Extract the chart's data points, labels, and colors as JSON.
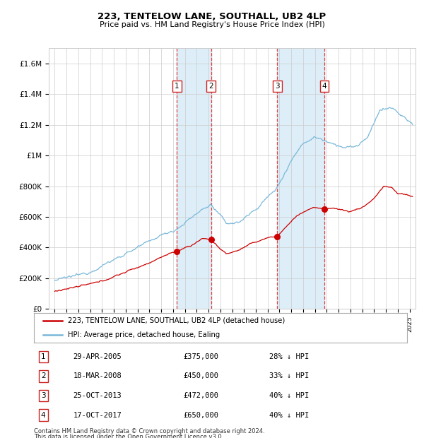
{
  "title": "223, TENTELOW LANE, SOUTHALL, UB2 4LP",
  "subtitle": "Price paid vs. HM Land Registry's House Price Index (HPI)",
  "footer1": "Contains HM Land Registry data © Crown copyright and database right 2024.",
  "footer2": "This data is licensed under the Open Government Licence v3.0.",
  "legend_red": "223, TENTELOW LANE, SOUTHALL, UB2 4LP (detached house)",
  "legend_blue": "HPI: Average price, detached house, Ealing",
  "sales": [
    {
      "num": 1,
      "date": "29-APR-2005",
      "price": 375000,
      "pct": "28%",
      "x_year": 2005.33
    },
    {
      "num": 2,
      "date": "18-MAR-2008",
      "price": 450000,
      "pct": "33%",
      "x_year": 2008.21
    },
    {
      "num": 3,
      "date": "25-OCT-2013",
      "price": 472000,
      "pct": "40%",
      "x_year": 2013.81
    },
    {
      "num": 4,
      "date": "17-OCT-2017",
      "price": 650000,
      "pct": "40%",
      "x_year": 2017.79
    }
  ],
  "red_color": "#cc0000",
  "blue_color": "#7ab8d9",
  "shade_color": "#ddeef8",
  "grid_color": "#cccccc",
  "ylim": [
    0,
    1700000
  ],
  "yticks": [
    0,
    200000,
    400000,
    600000,
    800000,
    1000000,
    1200000,
    1400000,
    1600000
  ],
  "ytick_labels": [
    "£0",
    "£200K",
    "£400K",
    "£600K",
    "£800K",
    "£1M",
    "£1.2M",
    "£1.4M",
    "£1.6M"
  ],
  "xlim_start": 1994.5,
  "xlim_end": 2025.5,
  "bg_color": "#ffffff"
}
